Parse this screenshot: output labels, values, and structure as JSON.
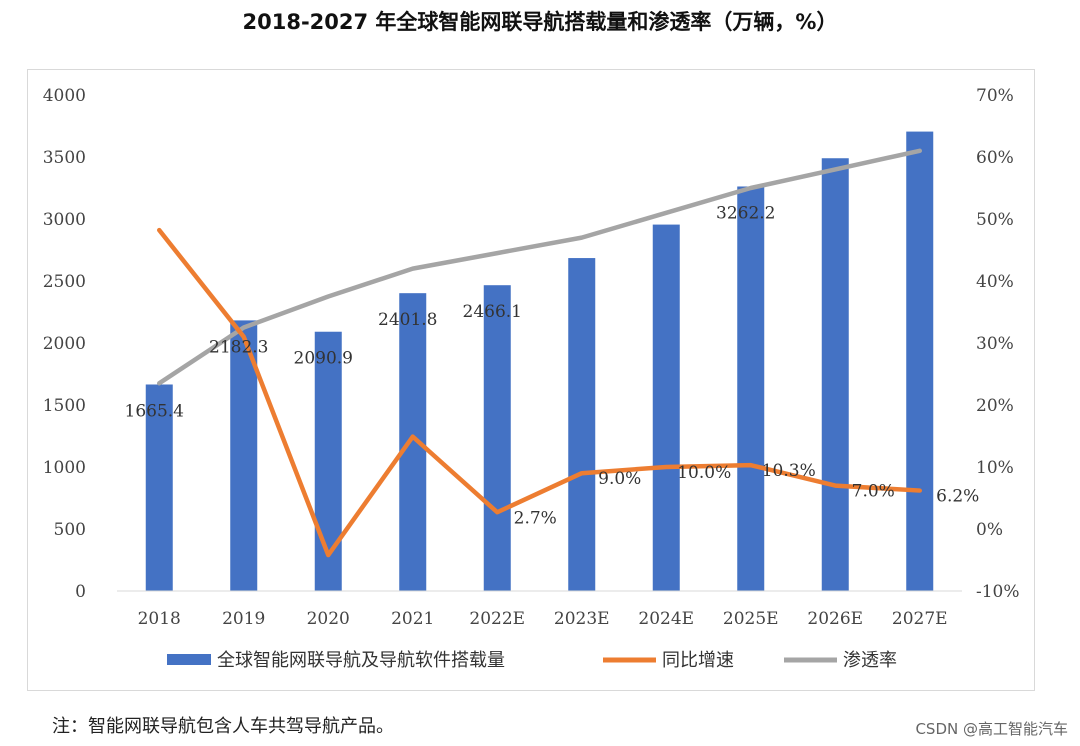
{
  "title": "2018-2027 年全球智能网联导航搭载量和渗透率（万辆，%）",
  "note": "注：智能网联导航包含人车共驾导航产品。",
  "credit": "CSDN @高工智能汽车",
  "colors": {
    "bar": "#4472C4",
    "growth": "#ED7D31",
    "penetration": "#A5A5A5"
  },
  "chart_data": {
    "type": "bar+line",
    "categories": [
      "2018",
      "2019",
      "2020",
      "2021",
      "2022E",
      "2023E",
      "2024E",
      "2025E",
      "2026E",
      "2027E"
    ],
    "left_axis": {
      "min": 0,
      "max": 4000,
      "step": 500,
      "ticks": [
        "0",
        "500",
        "1000",
        "1500",
        "2000",
        "2500",
        "3000",
        "3500",
        "4000"
      ]
    },
    "right_axis": {
      "min": -10,
      "max": 70,
      "step": 10,
      "ticks": [
        "-10%",
        "0%",
        "10%",
        "20%",
        "30%",
        "40%",
        "50%",
        "60%",
        "70%"
      ]
    },
    "series": [
      {
        "name": "全球智能网联导航及导航软件搭载量",
        "type": "bar",
        "axis": "left",
        "values": [
          1665.4,
          2182.3,
          2090.9,
          2401.8,
          2466.1,
          2685,
          2955,
          3262.2,
          3490,
          3705
        ],
        "labels": [
          "1665.4",
          "2182.3",
          "2090.9",
          "2401.8",
          "2466.1",
          "",
          "",
          "3262.2",
          "",
          ""
        ]
      },
      {
        "name": "同比增速",
        "type": "line",
        "axis": "right",
        "values": [
          48.2,
          31.0,
          -4.2,
          14.9,
          2.7,
          9.0,
          10.0,
          10.3,
          7.0,
          6.2
        ],
        "labels": [
          "",
          "",
          "",
          "",
          "2.7%",
          "9.0%",
          "10.0%",
          "10.3%",
          "7.0%",
          "6.2%"
        ]
      },
      {
        "name": "渗透率",
        "type": "line",
        "axis": "right",
        "values": [
          23.5,
          32.5,
          37.5,
          42.0,
          44.5,
          47.0,
          51.0,
          55.0,
          58.0,
          61.0
        ]
      }
    ]
  }
}
